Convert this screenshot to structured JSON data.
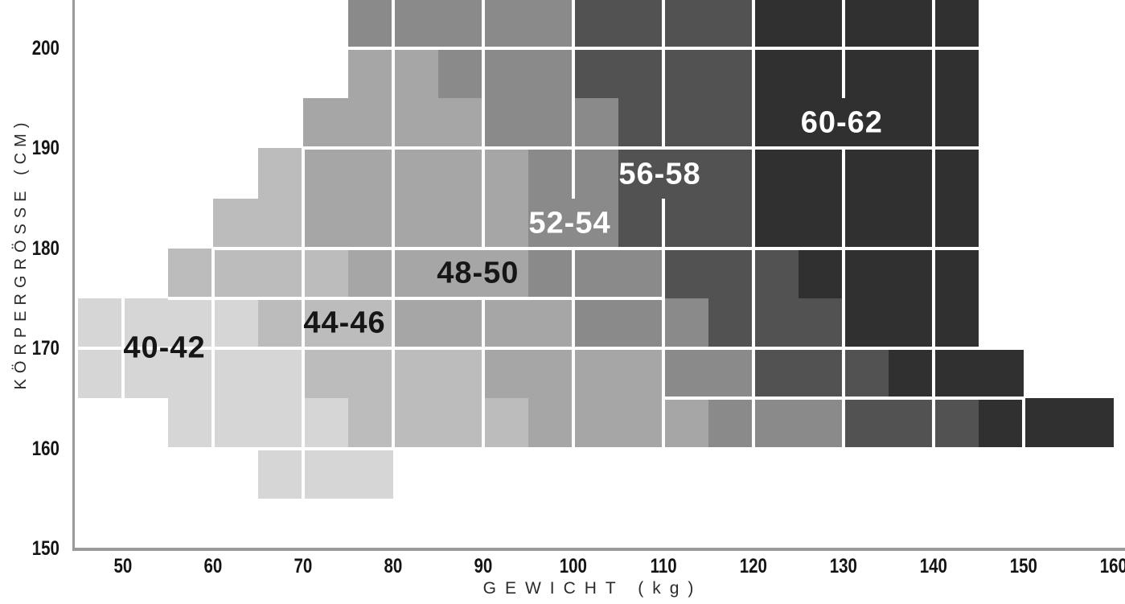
{
  "axis_titles": {
    "x": "GEWICHT (kg)",
    "y": "KÖRPERGRÖSSE (CM)"
  },
  "chart_data": {
    "type": "heatmap",
    "title": "",
    "xlabel": "GEWICHT (kg)",
    "ylabel": "KÖRPERGRÖSSE (CM)",
    "x_unit": "kg",
    "y_unit": "cm",
    "x_ticks": [
      "50",
      "60",
      "70",
      "80",
      "90",
      "100",
      "110",
      "120",
      "130",
      "140",
      "150",
      "160"
    ],
    "x_tick_values": [
      50,
      60,
      70,
      80,
      90,
      100,
      110,
      120,
      130,
      140,
      150,
      160
    ],
    "y_ticks": [
      "150",
      "160",
      "170",
      "180",
      "190",
      "200"
    ],
    "y_tick_values": [
      150,
      160,
      170,
      180,
      190,
      200
    ],
    "x_range": [
      45,
      160
    ],
    "y_range": [
      150,
      205
    ],
    "grid": "white lines, vertical every 10 kg, horizontal at selected 5 cm steps",
    "legend_position": "labels drawn inside bands",
    "sizes": [
      {
        "label": "40-42",
        "color": "#d6d6d6",
        "label_color": "#161616"
      },
      {
        "label": "44-46",
        "color": "#bcbcbc",
        "label_color": "#161616"
      },
      {
        "label": "48-50",
        "color": "#a6a6a6",
        "label_color": "#161616"
      },
      {
        "label": "52-54",
        "color": "#8a8a8a",
        "label_color": "#ffffff"
      },
      {
        "label": "56-58",
        "color": "#525252",
        "label_color": "#ffffff"
      },
      {
        "label": "60-62",
        "color": "#303030",
        "label_color": "#ffffff"
      }
    ],
    "rows": [
      {
        "cm": [
          200,
          205
        ],
        "segments": [
          {
            "kg": [
              75,
              100
            ],
            "size": "52-54"
          },
          {
            "kg": [
              100,
              120
            ],
            "size": "56-58"
          },
          {
            "kg": [
              120,
              145
            ],
            "size": "60-62"
          }
        ]
      },
      {
        "cm": [
          195,
          200
        ],
        "segments": [
          {
            "kg": [
              75,
              85
            ],
            "size": "48-50"
          },
          {
            "kg": [
              85,
              100
            ],
            "size": "52-54"
          },
          {
            "kg": [
              100,
              120
            ],
            "size": "56-58"
          },
          {
            "kg": [
              120,
              145
            ],
            "size": "60-62"
          }
        ]
      },
      {
        "cm": [
          190,
          195
        ],
        "segments": [
          {
            "kg": [
              70,
              90
            ],
            "size": "48-50"
          },
          {
            "kg": [
              90,
              105
            ],
            "size": "52-54"
          },
          {
            "kg": [
              105,
              120
            ],
            "size": "56-58"
          },
          {
            "kg": [
              120,
              145
            ],
            "size": "60-62"
          }
        ]
      },
      {
        "cm": [
          185,
          190
        ],
        "segments": [
          {
            "kg": [
              65,
              70
            ],
            "size": "44-46"
          },
          {
            "kg": [
              70,
              95
            ],
            "size": "48-50"
          },
          {
            "kg": [
              95,
              105
            ],
            "size": "52-54"
          },
          {
            "kg": [
              105,
              120
            ],
            "size": "56-58"
          },
          {
            "kg": [
              120,
              145
            ],
            "size": "60-62"
          }
        ]
      },
      {
        "cm": [
          180,
          185
        ],
        "segments": [
          {
            "kg": [
              60,
              70
            ],
            "size": "44-46"
          },
          {
            "kg": [
              70,
              95
            ],
            "size": "48-50"
          },
          {
            "kg": [
              95,
              105
            ],
            "size": "52-54"
          },
          {
            "kg": [
              105,
              120
            ],
            "size": "56-58"
          },
          {
            "kg": [
              120,
              145
            ],
            "size": "60-62"
          }
        ]
      },
      {
        "cm": [
          175,
          180
        ],
        "segments": [
          {
            "kg": [
              55,
              75
            ],
            "size": "44-46"
          },
          {
            "kg": [
              75,
              95
            ],
            "size": "48-50"
          },
          {
            "kg": [
              95,
              110
            ],
            "size": "52-54"
          },
          {
            "kg": [
              110,
              125
            ],
            "size": "56-58"
          },
          {
            "kg": [
              125,
              145
            ],
            "size": "60-62"
          }
        ]
      },
      {
        "cm": [
          170,
          175
        ],
        "segments": [
          {
            "kg": [
              45,
              65
            ],
            "size": "40-42"
          },
          {
            "kg": [
              65,
              80
            ],
            "size": "44-46"
          },
          {
            "kg": [
              80,
              100
            ],
            "size": "48-50"
          },
          {
            "kg": [
              100,
              115
            ],
            "size": "52-54"
          },
          {
            "kg": [
              115,
              130
            ],
            "size": "56-58"
          },
          {
            "kg": [
              130,
              145
            ],
            "size": "60-62"
          }
        ]
      },
      {
        "cm": [
          165,
          170
        ],
        "segments": [
          {
            "kg": [
              45,
              70
            ],
            "size": "40-42"
          },
          {
            "kg": [
              70,
              90
            ],
            "size": "44-46"
          },
          {
            "kg": [
              90,
              110
            ],
            "size": "48-50"
          },
          {
            "kg": [
              110,
              120
            ],
            "size": "52-54"
          },
          {
            "kg": [
              120,
              135
            ],
            "size": "56-58"
          },
          {
            "kg": [
              135,
              150
            ],
            "size": "60-62"
          }
        ]
      },
      {
        "cm": [
          160,
          165
        ],
        "segments": [
          {
            "kg": [
              55,
              75
            ],
            "size": "40-42"
          },
          {
            "kg": [
              75,
              95
            ],
            "size": "44-46"
          },
          {
            "kg": [
              95,
              115
            ],
            "size": "48-50"
          },
          {
            "kg": [
              115,
              130
            ],
            "size": "52-54"
          },
          {
            "kg": [
              130,
              145
            ],
            "size": "56-58"
          },
          {
            "kg": [
              145,
              160
            ],
            "size": "60-62"
          }
        ]
      },
      {
        "cm": [
          155,
          160
        ],
        "segments": [
          {
            "kg": [
              65,
              80
            ],
            "size": "40-42"
          }
        ]
      }
    ],
    "band_labels": [
      {
        "text": "40-42",
        "kg": 54.6,
        "cm": 170.0
      },
      {
        "text": "44-46",
        "kg": 74.6,
        "cm": 172.5
      },
      {
        "text": "48-50",
        "kg": 89.4,
        "cm": 177.5
      },
      {
        "text": "52-54",
        "kg": 99.6,
        "cm": 182.5
      },
      {
        "text": "56-58",
        "kg": 109.6,
        "cm": 187.4
      },
      {
        "text": "60-62",
        "kg": 129.8,
        "cm": 192.5
      }
    ],
    "h_gridlines": [
      {
        "cm": 200,
        "kg": [
          75,
          145
        ]
      },
      {
        "cm": 190,
        "kg": [
          70,
          145
        ]
      },
      {
        "cm": 180,
        "kg": [
          60,
          145
        ]
      },
      {
        "cm": 175,
        "kg": [
          55,
          110
        ]
      },
      {
        "cm": 170,
        "kg": [
          45,
          150
        ]
      },
      {
        "cm": 165,
        "kg": [
          110,
          150
        ]
      },
      {
        "cm": 160,
        "kg": [
          55,
          160
        ]
      }
    ],
    "v_gridlines_every_kg": 10
  }
}
